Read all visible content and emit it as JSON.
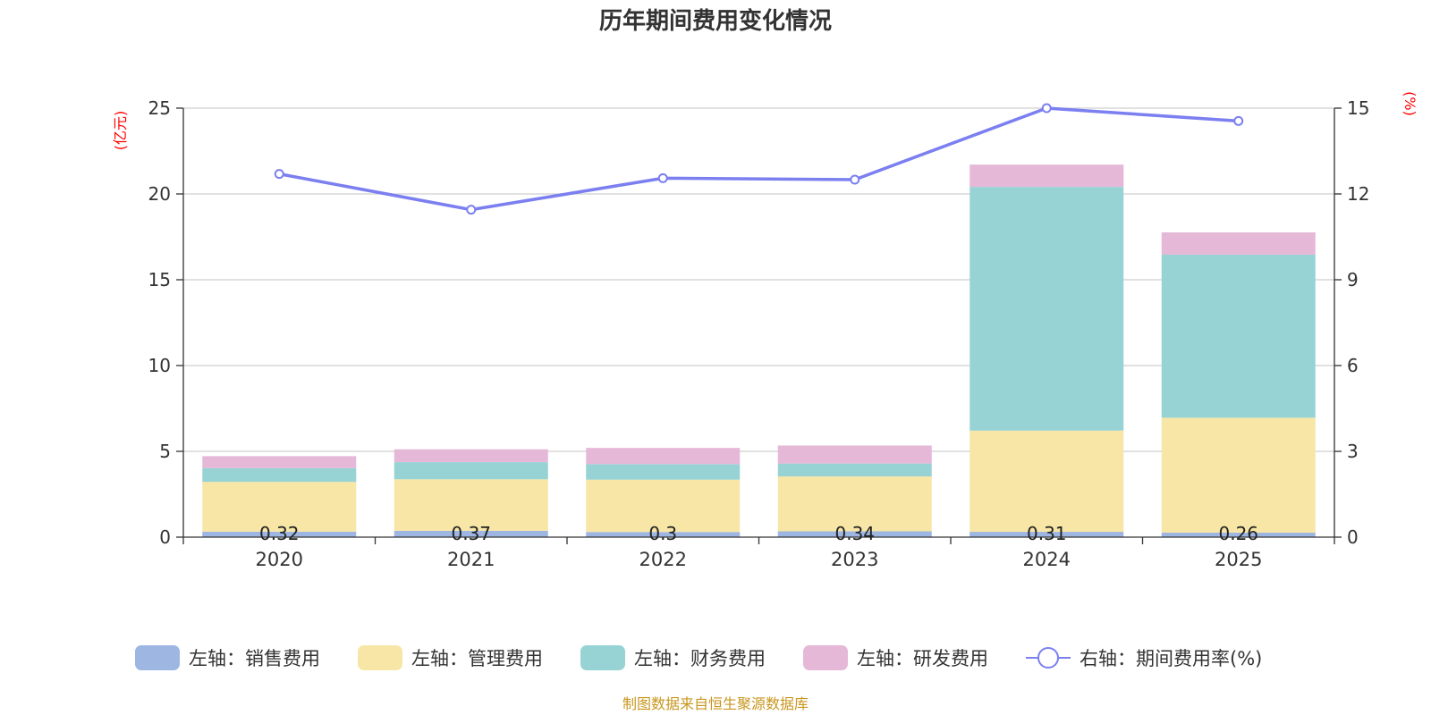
{
  "colors": {
    "sales": "#9db6e2",
    "admin": "#f8e6a6",
    "finance": "#97d3d4",
    "rd": "#e5b8d8",
    "rate": "#7b7ff0",
    "unit_label": "#ff0000",
    "source": "#c8961e"
  },
  "chart_data": {
    "type": "bar",
    "stacked": true,
    "title": "历年期间费用变化情况",
    "categories": [
      "2020",
      "2021",
      "2022",
      "2023",
      "2024",
      "2025"
    ],
    "left_axis": {
      "unit": "(亿元)",
      "min": 0,
      "max": 25,
      "ticks": [
        0,
        5,
        10,
        15,
        20,
        25
      ]
    },
    "right_axis": {
      "unit": "(%)",
      "min": 0,
      "max": 15,
      "ticks": [
        0,
        3,
        6,
        9,
        12,
        15
      ]
    },
    "series": [
      {
        "key": "sales",
        "name": "左轴：销售费用",
        "axis": "left",
        "values": [
          0.32,
          0.37,
          0.3,
          0.34,
          0.31,
          0.26
        ],
        "labels": [
          "0.32",
          "0.37",
          "0.3",
          "0.34",
          "0.31",
          "0.26"
        ]
      },
      {
        "key": "admin",
        "name": "左轴：管理费用",
        "axis": "left",
        "values": [
          2.9,
          3.0,
          3.05,
          3.2,
          5.9,
          6.7
        ]
      },
      {
        "key": "finance",
        "name": "左轴：财务费用",
        "axis": "left",
        "values": [
          0.8,
          1.0,
          0.9,
          0.75,
          14.2,
          9.5
        ]
      },
      {
        "key": "rd",
        "name": "左轴：研发费用",
        "axis": "left",
        "values": [
          0.7,
          0.75,
          0.95,
          1.05,
          1.3,
          1.3
        ]
      }
    ],
    "line": {
      "key": "rate",
      "name": "右轴：期间费用率(%)",
      "axis": "right",
      "values": [
        12.7,
        11.45,
        12.55,
        12.5,
        15.0,
        14.55
      ]
    },
    "grid": true,
    "legend_position": "bottom"
  },
  "footer": {
    "source": "制图数据来自恒生聚源数据库"
  }
}
